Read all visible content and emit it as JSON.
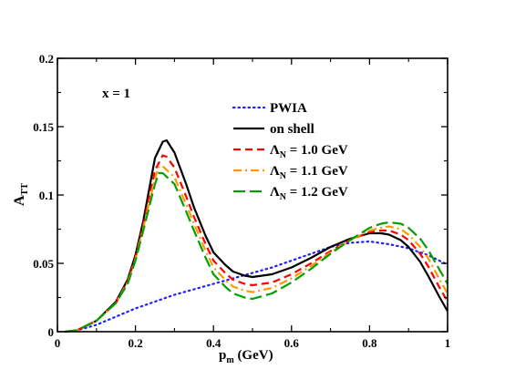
{
  "chart_data": {
    "type": "line",
    "annotation": "x = 1",
    "xlabel": {
      "main": "p",
      "sub": "m",
      "unit": " (GeV)"
    },
    "ylabel": {
      "main": "A",
      "sub": "TT"
    },
    "xlim": [
      0,
      1
    ],
    "ylim": [
      0,
      0.2
    ],
    "xticks": [
      0,
      0.2,
      0.4,
      0.6,
      0.8,
      1
    ],
    "xtick_labels": [
      "0",
      "0.2",
      "0.4",
      "0.6",
      "0.8",
      "1"
    ],
    "yticks": [
      0,
      0.05,
      0.1,
      0.15,
      0.2
    ],
    "ytick_labels": [
      "0",
      "0.05",
      "0.1",
      "0.15",
      "0.2"
    ],
    "grid": false,
    "legend_position": "top-right",
    "series": [
      {
        "name": "PWIA",
        "color": "#2020ff",
        "style": "dotted",
        "x": [
          0.02,
          0.05,
          0.1,
          0.15,
          0.2,
          0.25,
          0.3,
          0.35,
          0.4,
          0.45,
          0.5,
          0.55,
          0.6,
          0.65,
          0.7,
          0.75,
          0.8,
          0.85,
          0.9,
          0.95,
          1.0
        ],
        "y": [
          0.0,
          0.001,
          0.005,
          0.011,
          0.017,
          0.022,
          0.027,
          0.031,
          0.035,
          0.039,
          0.043,
          0.047,
          0.052,
          0.057,
          0.062,
          0.065,
          0.066,
          0.064,
          0.061,
          0.056,
          0.049
        ]
      },
      {
        "name": "on shell",
        "color": "#000000",
        "style": "solid",
        "x": [
          0.02,
          0.05,
          0.1,
          0.15,
          0.18,
          0.2,
          0.22,
          0.25,
          0.27,
          0.28,
          0.3,
          0.33,
          0.35,
          0.38,
          0.4,
          0.43,
          0.45,
          0.48,
          0.5,
          0.55,
          0.6,
          0.65,
          0.7,
          0.75,
          0.8,
          0.83,
          0.85,
          0.88,
          0.9,
          0.93,
          0.95,
          0.98,
          1.0
        ],
        "y": [
          0.0,
          0.001,
          0.008,
          0.022,
          0.038,
          0.056,
          0.081,
          0.127,
          0.139,
          0.14,
          0.131,
          0.108,
          0.091,
          0.07,
          0.058,
          0.049,
          0.044,
          0.041,
          0.04,
          0.042,
          0.047,
          0.054,
          0.062,
          0.068,
          0.072,
          0.072,
          0.071,
          0.067,
          0.062,
          0.051,
          0.041,
          0.025,
          0.015
        ]
      },
      {
        "name": "Λ_N = 1.0 GeV",
        "color": "#ff0000",
        "style": "dashed",
        "x": [
          0.02,
          0.05,
          0.1,
          0.15,
          0.18,
          0.2,
          0.22,
          0.25,
          0.27,
          0.28,
          0.3,
          0.33,
          0.35,
          0.38,
          0.4,
          0.43,
          0.45,
          0.48,
          0.5,
          0.55,
          0.6,
          0.65,
          0.7,
          0.75,
          0.8,
          0.83,
          0.85,
          0.88,
          0.9,
          0.93,
          0.95,
          0.98,
          1.0
        ],
        "y": [
          0.0,
          0.001,
          0.008,
          0.021,
          0.037,
          0.054,
          0.078,
          0.118,
          0.129,
          0.128,
          0.12,
          0.099,
          0.084,
          0.064,
          0.052,
          0.043,
          0.038,
          0.035,
          0.034,
          0.036,
          0.042,
          0.05,
          0.059,
          0.067,
          0.073,
          0.074,
          0.074,
          0.071,
          0.067,
          0.057,
          0.048,
          0.032,
          0.022
        ]
      },
      {
        "name": "Λ_N = 1.1 GeV",
        "color": "#ff9900",
        "style": "dashdot",
        "x": [
          0.02,
          0.05,
          0.1,
          0.15,
          0.18,
          0.2,
          0.22,
          0.25,
          0.26,
          0.27,
          0.3,
          0.33,
          0.35,
          0.38,
          0.4,
          0.43,
          0.45,
          0.48,
          0.5,
          0.55,
          0.6,
          0.65,
          0.7,
          0.75,
          0.8,
          0.83,
          0.85,
          0.88,
          0.9,
          0.93,
          0.95,
          0.98,
          1.0
        ],
        "y": [
          0.0,
          0.001,
          0.008,
          0.021,
          0.036,
          0.053,
          0.076,
          0.112,
          0.121,
          0.121,
          0.113,
          0.093,
          0.079,
          0.059,
          0.047,
          0.038,
          0.033,
          0.03,
          0.029,
          0.032,
          0.039,
          0.048,
          0.058,
          0.067,
          0.074,
          0.076,
          0.077,
          0.075,
          0.071,
          0.062,
          0.054,
          0.038,
          0.028
        ]
      },
      {
        "name": "Λ_N = 1.2 GeV",
        "color": "#00a000",
        "style": "longdash",
        "x": [
          0.02,
          0.05,
          0.1,
          0.15,
          0.18,
          0.2,
          0.22,
          0.25,
          0.26,
          0.27,
          0.3,
          0.33,
          0.35,
          0.38,
          0.4,
          0.43,
          0.45,
          0.48,
          0.5,
          0.55,
          0.6,
          0.65,
          0.7,
          0.75,
          0.8,
          0.83,
          0.85,
          0.88,
          0.9,
          0.93,
          0.95,
          0.98,
          1.0
        ],
        "y": [
          0.0,
          0.001,
          0.008,
          0.021,
          0.035,
          0.052,
          0.074,
          0.108,
          0.116,
          0.116,
          0.108,
          0.088,
          0.074,
          0.054,
          0.042,
          0.033,
          0.028,
          0.025,
          0.024,
          0.028,
          0.036,
          0.046,
          0.057,
          0.067,
          0.076,
          0.079,
          0.08,
          0.079,
          0.076,
          0.068,
          0.06,
          0.045,
          0.035
        ]
      }
    ],
    "legend": [
      {
        "main": "PWIA",
        "sub": "",
        "rest": ""
      },
      {
        "main": "on shell",
        "sub": "",
        "rest": ""
      },
      {
        "main": "Λ",
        "sub": "N",
        "rest": " = 1.0 GeV"
      },
      {
        "main": "Λ",
        "sub": "N",
        "rest": " = 1.1 GeV"
      },
      {
        "main": "Λ",
        "sub": "N",
        "rest": " = 1.2 GeV"
      }
    ]
  }
}
